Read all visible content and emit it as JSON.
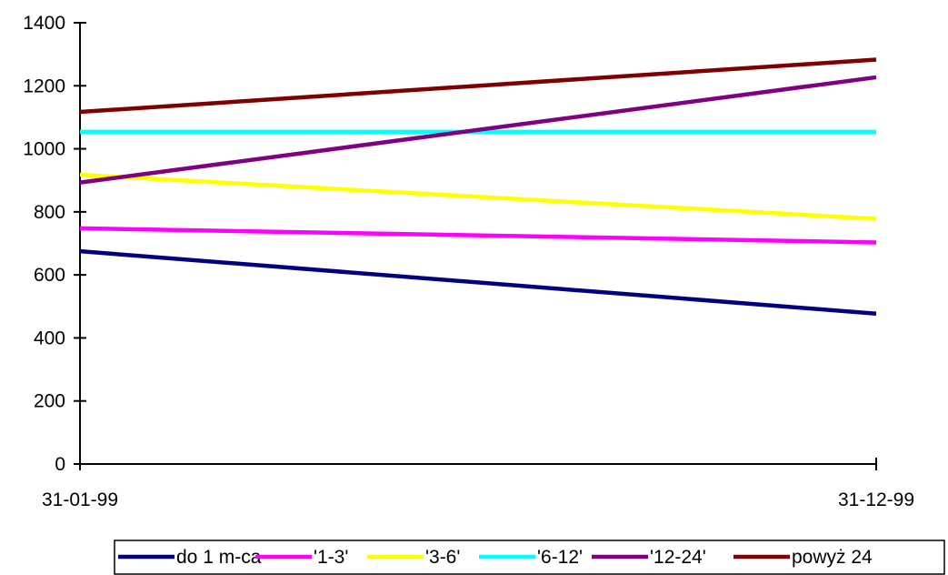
{
  "chart_data": {
    "type": "line",
    "title": "",
    "xlabel": "",
    "ylabel": "",
    "x": [
      "31-01-99",
      "31-12-99"
    ],
    "ylim": [
      0,
      1400
    ],
    "yticks": [
      0,
      200,
      400,
      600,
      800,
      1000,
      1200,
      1400
    ],
    "grid": false,
    "legend_position": "bottom",
    "series": [
      {
        "name": "do 1 m-ca",
        "values": [
          675,
          477
        ],
        "color": "#000080"
      },
      {
        "name": "'1-3'",
        "values": [
          748,
          703
        ],
        "color": "#FF00FF"
      },
      {
        "name": "'3-6'",
        "values": [
          918,
          778
        ],
        "color": "#FFFF00"
      },
      {
        "name": "'6-12'",
        "values": [
          1054,
          1054
        ],
        "color": "#00FFFF"
      },
      {
        "name": "'12-24'",
        "values": [
          893,
          1227
        ],
        "color": "#800080"
      },
      {
        "name": "powyż 24",
        "values": [
          1117,
          1283
        ],
        "color": "#800000"
      }
    ]
  }
}
